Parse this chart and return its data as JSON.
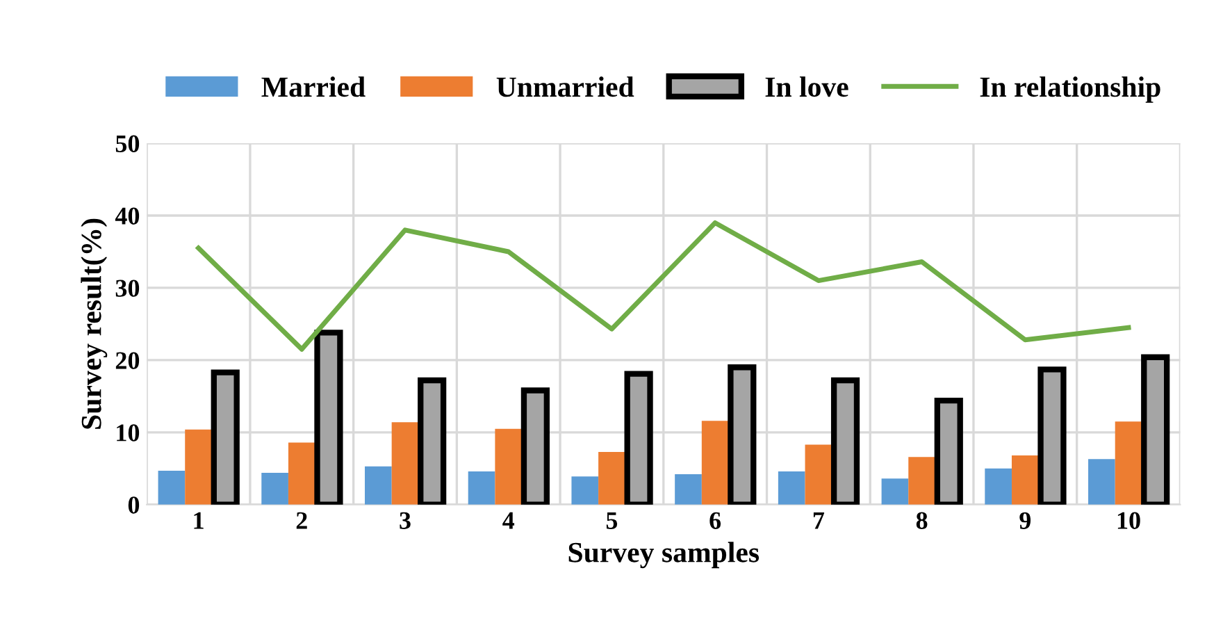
{
  "chart_data": {
    "type": "bar",
    "xlabel": "Survey samples",
    "ylabel": "Survey result(%)",
    "categories": [
      "1",
      "2",
      "3",
      "4",
      "5",
      "6",
      "7",
      "8",
      "9",
      "10"
    ],
    "series": [
      {
        "name": "Married",
        "color": "#5b9bd5",
        "values": [
          4.7,
          4.4,
          5.3,
          4.6,
          3.9,
          4.2,
          4.6,
          3.6,
          5.0,
          6.3
        ]
      },
      {
        "name": "Unmarried",
        "color": "#ed7d31",
        "values": [
          10.4,
          8.6,
          11.4,
          10.5,
          7.3,
          11.6,
          8.3,
          6.6,
          6.8,
          11.5
        ]
      },
      {
        "name": "In love",
        "color": "#a5a5a5",
        "values": [
          18.3,
          23.8,
          17.2,
          15.8,
          18.1,
          19.0,
          17.2,
          14.4,
          18.7,
          20.4
        ]
      },
      {
        "name": "In relationship",
        "color": "#70ad47",
        "type": "line",
        "values": [
          35.5,
          21.5,
          38.0,
          35.0,
          24.3,
          39.0,
          31.0,
          33.6,
          22.8,
          24.5
        ]
      }
    ],
    "ylim": [
      0,
      50
    ],
    "yticks": [
      0,
      10,
      20,
      30,
      40,
      50
    ],
    "grid": true,
    "legend": "top"
  }
}
